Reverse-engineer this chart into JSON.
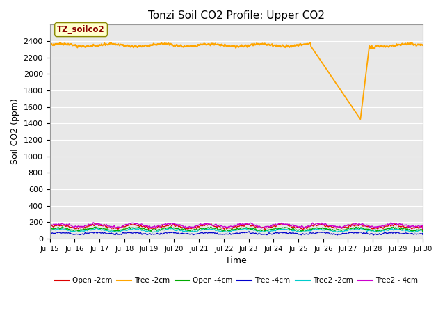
{
  "title": "Tonzi Soil CO2 Profile: Upper CO2",
  "xlabel": "Time",
  "ylabel": "Soil CO2 (ppm)",
  "ylim": [
    0,
    2600
  ],
  "yticks": [
    0,
    200,
    400,
    600,
    800,
    1000,
    1200,
    1400,
    1600,
    1800,
    2000,
    2200,
    2400
  ],
  "xtick_labels": [
    "Jul 15",
    "Jul 16",
    "Jul 17",
    "Jul 18",
    "Jul 19",
    "Jul 20",
    "Jul 21",
    "Jul 22",
    "Jul 23",
    "Jul 24",
    "Jul 25",
    "Jul 26",
    "Jul 27",
    "Jul 28",
    "Jul 29",
    "Jul 30"
  ],
  "background_color": "#e8e8e8",
  "plot_bg_color": "#e8e8e8",
  "series": {
    "Open_2cm": {
      "color": "#dd0000",
      "label": "Open -2cm"
    },
    "Tree_2cm": {
      "color": "#ffa500",
      "label": "Tree -2cm"
    },
    "Open_4cm": {
      "color": "#00aa00",
      "label": "Open -4cm"
    },
    "Tree_4cm": {
      "color": "#0000cc",
      "label": "Tree -4cm"
    },
    "Tree2_2cm": {
      "color": "#00cccc",
      "label": "Tree2 -2cm"
    },
    "Tree2_4cm": {
      "color": "#cc00cc",
      "label": "Tree2 - 4cm"
    }
  },
  "annotation_text": "TZ_soilco2",
  "grid_color": "#ffffff",
  "fig_width": 6.4,
  "fig_height": 4.8,
  "dpi": 100
}
